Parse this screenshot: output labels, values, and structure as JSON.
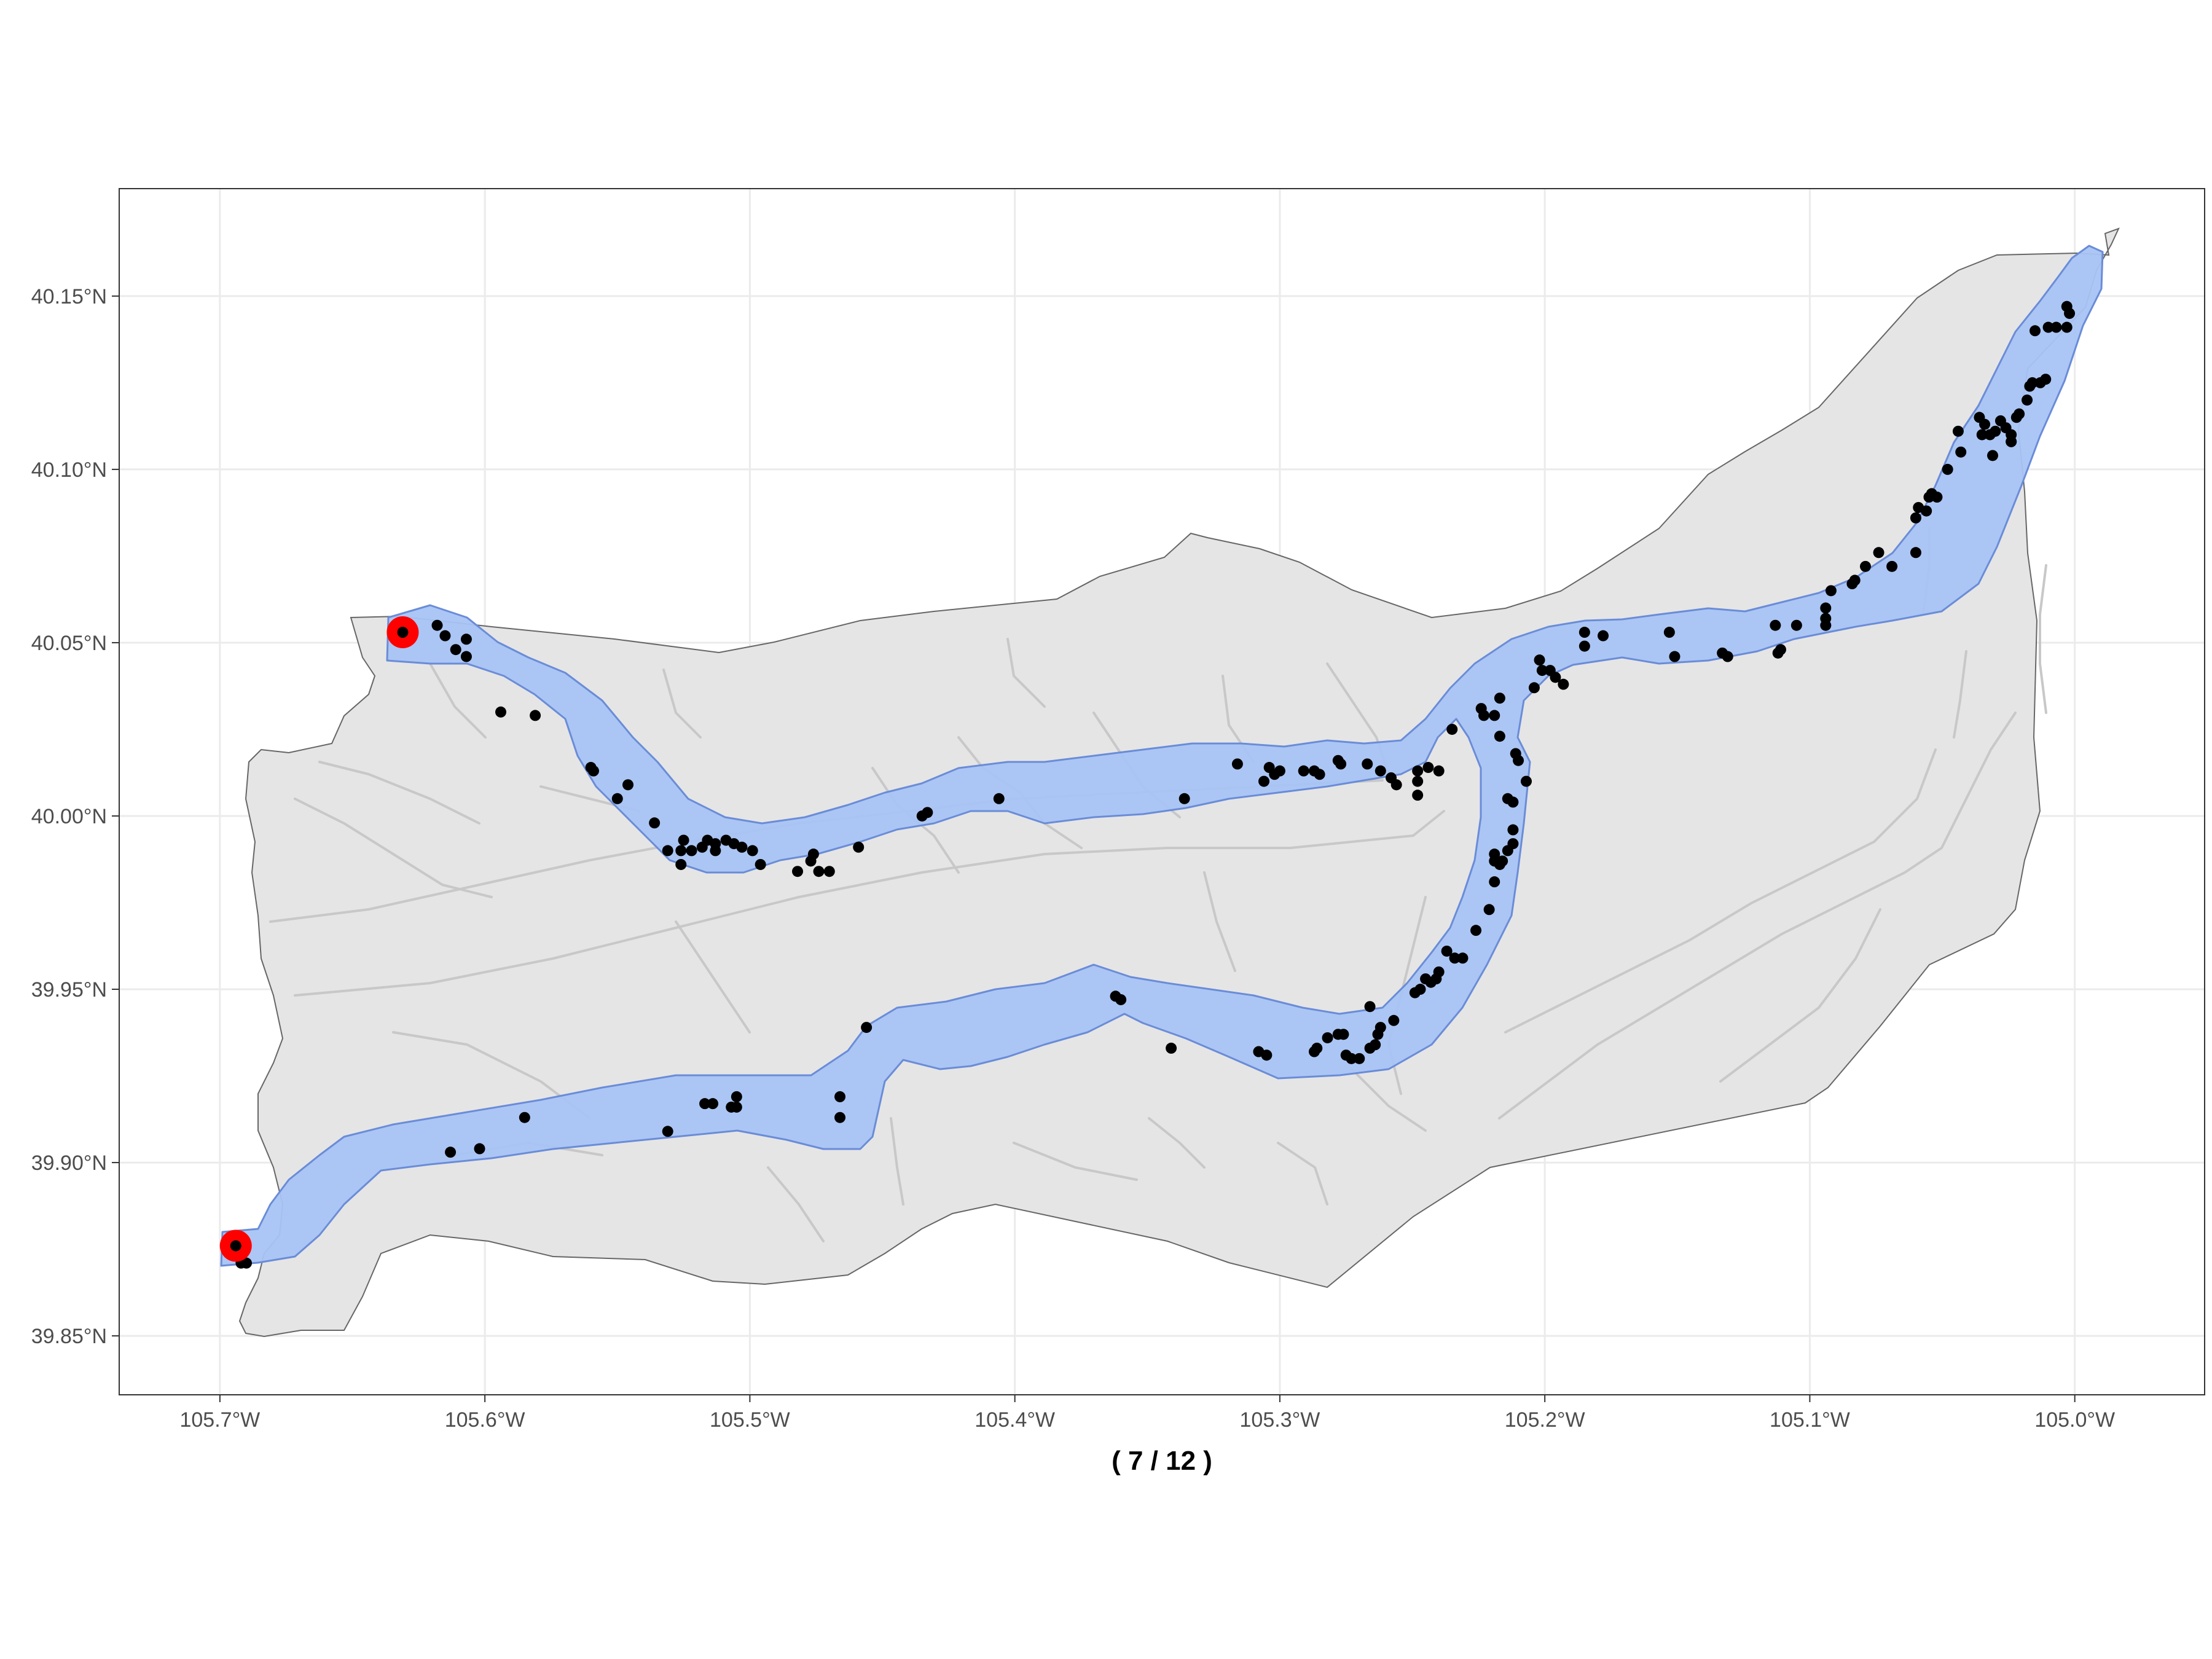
{
  "map": {
    "caption": "( 7 / 12 )",
    "x_ticks": [
      {
        "value": -105.7,
        "label": "105.7°W"
      },
      {
        "value": -105.6,
        "label": "105.6°W"
      },
      {
        "value": -105.5,
        "label": "105.5°W"
      },
      {
        "value": -105.4,
        "label": "105.4°W"
      },
      {
        "value": -105.3,
        "label": "105.3°W"
      },
      {
        "value": -105.2,
        "label": "105.2°W"
      },
      {
        "value": -105.1,
        "label": "105.1°W"
      },
      {
        "value": -105.0,
        "label": "105.0°W"
      }
    ],
    "y_ticks": [
      {
        "value": 40.15,
        "label": "40.15°N"
      },
      {
        "value": 40.1,
        "label": "40.10°N"
      },
      {
        "value": 40.05,
        "label": "40.05°N"
      },
      {
        "value": 40.0,
        "label": "40.00°N"
      },
      {
        "value": 39.95,
        "label": "39.95°N"
      },
      {
        "value": 39.9,
        "label": "39.90°N"
      },
      {
        "value": 39.85,
        "label": "39.85°N"
      }
    ],
    "xlim": [
      -105.738,
      -104.951
    ],
    "ylim": [
      39.833,
      40.181
    ],
    "colors": {
      "panel_border": "#333333",
      "grid": "#ebebeb",
      "watershed_fill": "#e5e5e5",
      "watershed_border": "#666666",
      "streams": "#c8c8c8",
      "corridor_fill": "#a8c4f4",
      "corridor_border": "#6a8cd8",
      "points": "#000000",
      "endpoints": "#ff0000"
    },
    "endpoints": [
      {
        "lon": -105.631,
        "lat": 40.053
      },
      {
        "lon": -105.694,
        "lat": 39.876
      }
    ],
    "points": [
      [
        -105.618,
        40.055
      ],
      [
        -105.615,
        40.052
      ],
      [
        -105.611,
        40.048
      ],
      [
        -105.607,
        40.046
      ],
      [
        -105.607,
        40.051
      ],
      [
        -105.594,
        40.03
      ],
      [
        -105.581,
        40.029
      ],
      [
        -105.56,
        40.014
      ],
      [
        -105.559,
        40.013
      ],
      [
        -105.55,
        40.005
      ],
      [
        -105.546,
        40.009
      ],
      [
        -105.536,
        39.998
      ],
      [
        -105.531,
        39.99
      ],
      [
        -105.526,
        39.99
      ],
      [
        -105.526,
        39.986
      ],
      [
        -105.525,
        39.993
      ],
      [
        -105.522,
        39.99
      ],
      [
        -105.518,
        39.991
      ],
      [
        -105.516,
        39.993
      ],
      [
        -105.513,
        39.992
      ],
      [
        -105.513,
        39.99
      ],
      [
        -105.509,
        39.993
      ],
      [
        -105.506,
        39.992
      ],
      [
        -105.503,
        39.991
      ],
      [
        -105.499,
        39.99
      ],
      [
        -105.496,
        39.986
      ],
      [
        -105.482,
        39.984
      ],
      [
        -105.477,
        39.987
      ],
      [
        -105.476,
        39.989
      ],
      [
        -105.474,
        39.984
      ],
      [
        -105.47,
        39.984
      ],
      [
        -105.459,
        39.991
      ],
      [
        -105.435,
        40.0
      ],
      [
        -105.433,
        40.001
      ],
      [
        -105.406,
        40.005
      ],
      [
        -105.336,
        40.005
      ],
      [
        -105.316,
        40.015
      ],
      [
        -105.306,
        40.01
      ],
      [
        -105.304,
        40.014
      ],
      [
        -105.302,
        40.012
      ],
      [
        -105.3,
        40.013
      ],
      [
        -105.291,
        40.013
      ],
      [
        -105.287,
        40.013
      ],
      [
        -105.285,
        40.012
      ],
      [
        -105.278,
        40.016
      ],
      [
        -105.277,
        40.015
      ],
      [
        -105.267,
        40.015
      ],
      [
        -105.262,
        40.013
      ],
      [
        -105.258,
        40.011
      ],
      [
        -105.256,
        40.009
      ],
      [
        -105.248,
        40.006
      ],
      [
        -105.248,
        40.01
      ],
      [
        -105.248,
        40.013
      ],
      [
        -105.244,
        40.014
      ],
      [
        -105.24,
        40.013
      ],
      [
        -105.235,
        40.025
      ],
      [
        -105.224,
        40.031
      ],
      [
        -105.223,
        40.029
      ],
      [
        -105.219,
        40.029
      ],
      [
        -105.217,
        40.034
      ],
      [
        -105.211,
        40.018
      ],
      [
        -105.21,
        40.016
      ],
      [
        -105.207,
        40.01
      ],
      [
        -105.204,
        40.037
      ],
      [
        -105.202,
        40.045
      ],
      [
        -105.201,
        40.042
      ],
      [
        -105.198,
        40.042
      ],
      [
        -105.196,
        40.04
      ],
      [
        -105.193,
        40.038
      ],
      [
        -105.185,
        40.049
      ],
      [
        -105.185,
        40.053
      ],
      [
        -105.178,
        40.052
      ],
      [
        -105.153,
        40.053
      ],
      [
        -105.151,
        40.046
      ],
      [
        -105.133,
        40.047
      ],
      [
        -105.131,
        40.046
      ],
      [
        -105.113,
        40.055
      ],
      [
        -105.112,
        40.047
      ],
      [
        -105.111,
        40.048
      ],
      [
        -105.105,
        40.055
      ],
      [
        -105.094,
        40.055
      ],
      [
        -105.094,
        40.057
      ],
      [
        -105.094,
        40.06
      ],
      [
        -105.092,
        40.065
      ],
      [
        -105.084,
        40.067
      ],
      [
        -105.083,
        40.068
      ],
      [
        -105.079,
        40.072
      ],
      [
        -105.074,
        40.076
      ],
      [
        -105.069,
        40.072
      ],
      [
        -105.06,
        40.076
      ],
      [
        -105.06,
        40.086
      ],
      [
        -105.059,
        40.089
      ],
      [
        -105.056,
        40.088
      ],
      [
        -105.055,
        40.092
      ],
      [
        -105.054,
        40.093
      ],
      [
        -105.052,
        40.092
      ],
      [
        -105.048,
        40.1
      ],
      [
        -105.043,
        40.105
      ],
      [
        -105.044,
        40.111
      ],
      [
        -105.036,
        40.115
      ],
      [
        -105.035,
        40.11
      ],
      [
        -105.034,
        40.113
      ],
      [
        -105.032,
        40.11
      ],
      [
        -105.031,
        40.104
      ],
      [
        -105.03,
        40.111
      ],
      [
        -105.028,
        40.114
      ],
      [
        -105.026,
        40.112
      ],
      [
        -105.024,
        40.11
      ],
      [
        -105.024,
        40.108
      ],
      [
        -105.022,
        40.115
      ],
      [
        -105.021,
        40.116
      ],
      [
        -105.018,
        40.12
      ],
      [
        -105.017,
        40.124
      ],
      [
        -105.016,
        40.125
      ],
      [
        -105.013,
        40.125
      ],
      [
        -105.011,
        40.126
      ],
      [
        -105.01,
        40.141
      ],
      [
        -105.007,
        40.141
      ],
      [
        -105.003,
        40.141
      ],
      [
        -105.003,
        40.147
      ],
      [
        -105.002,
        40.145
      ],
      [
        -105.015,
        40.14
      ],
      [
        -105.024,
        40.108
      ],
      [
        -105.217,
        40.023
      ],
      [
        -105.214,
        40.005
      ],
      [
        -105.212,
        40.004
      ],
      [
        -105.212,
        39.996
      ],
      [
        -105.212,
        39.992
      ],
      [
        -105.214,
        39.99
      ],
      [
        -105.216,
        39.987
      ],
      [
        -105.217,
        39.986
      ],
      [
        -105.219,
        39.987
      ],
      [
        -105.219,
        39.989
      ],
      [
        -105.219,
        39.981
      ],
      [
        -105.221,
        39.973
      ],
      [
        -105.226,
        39.967
      ],
      [
        -105.231,
        39.959
      ],
      [
        -105.234,
        39.959
      ],
      [
        -105.237,
        39.961
      ],
      [
        -105.24,
        39.955
      ],
      [
        -105.241,
        39.953
      ],
      [
        -105.243,
        39.952
      ],
      [
        -105.245,
        39.953
      ],
      [
        -105.247,
        39.95
      ],
      [
        -105.249,
        39.949
      ],
      [
        -105.257,
        39.941
      ],
      [
        -105.262,
        39.939
      ],
      [
        -105.263,
        39.937
      ],
      [
        -105.264,
        39.934
      ],
      [
        -105.266,
        39.945
      ],
      [
        -105.266,
        39.933
      ],
      [
        -105.27,
        39.93
      ],
      [
        -105.273,
        39.93
      ],
      [
        -105.275,
        39.931
      ],
      [
        -105.276,
        39.937
      ],
      [
        -105.278,
        39.937
      ],
      [
        -105.282,
        39.936
      ],
      [
        -105.286,
        39.933
      ],
      [
        -105.287,
        39.932
      ],
      [
        -105.305,
        39.931
      ],
      [
        -105.308,
        39.932
      ],
      [
        -105.341,
        39.933
      ],
      [
        -105.36,
        39.947
      ],
      [
        -105.362,
        39.948
      ],
      [
        -105.456,
        39.939
      ],
      [
        -105.466,
        39.919
      ],
      [
        -105.466,
        39.913
      ],
      [
        -105.505,
        39.919
      ],
      [
        -105.505,
        39.916
      ],
      [
        -105.507,
        39.916
      ],
      [
        -105.514,
        39.917
      ],
      [
        -105.517,
        39.917
      ],
      [
        -105.531,
        39.909
      ],
      [
        -105.585,
        39.913
      ],
      [
        -105.602,
        39.904
      ],
      [
        -105.613,
        39.903
      ],
      [
        -105.69,
        39.871
      ],
      [
        -105.692,
        39.871
      ],
      [
        -105.631,
        40.053
      ],
      [
        -105.694,
        39.876
      ]
    ]
  }
}
